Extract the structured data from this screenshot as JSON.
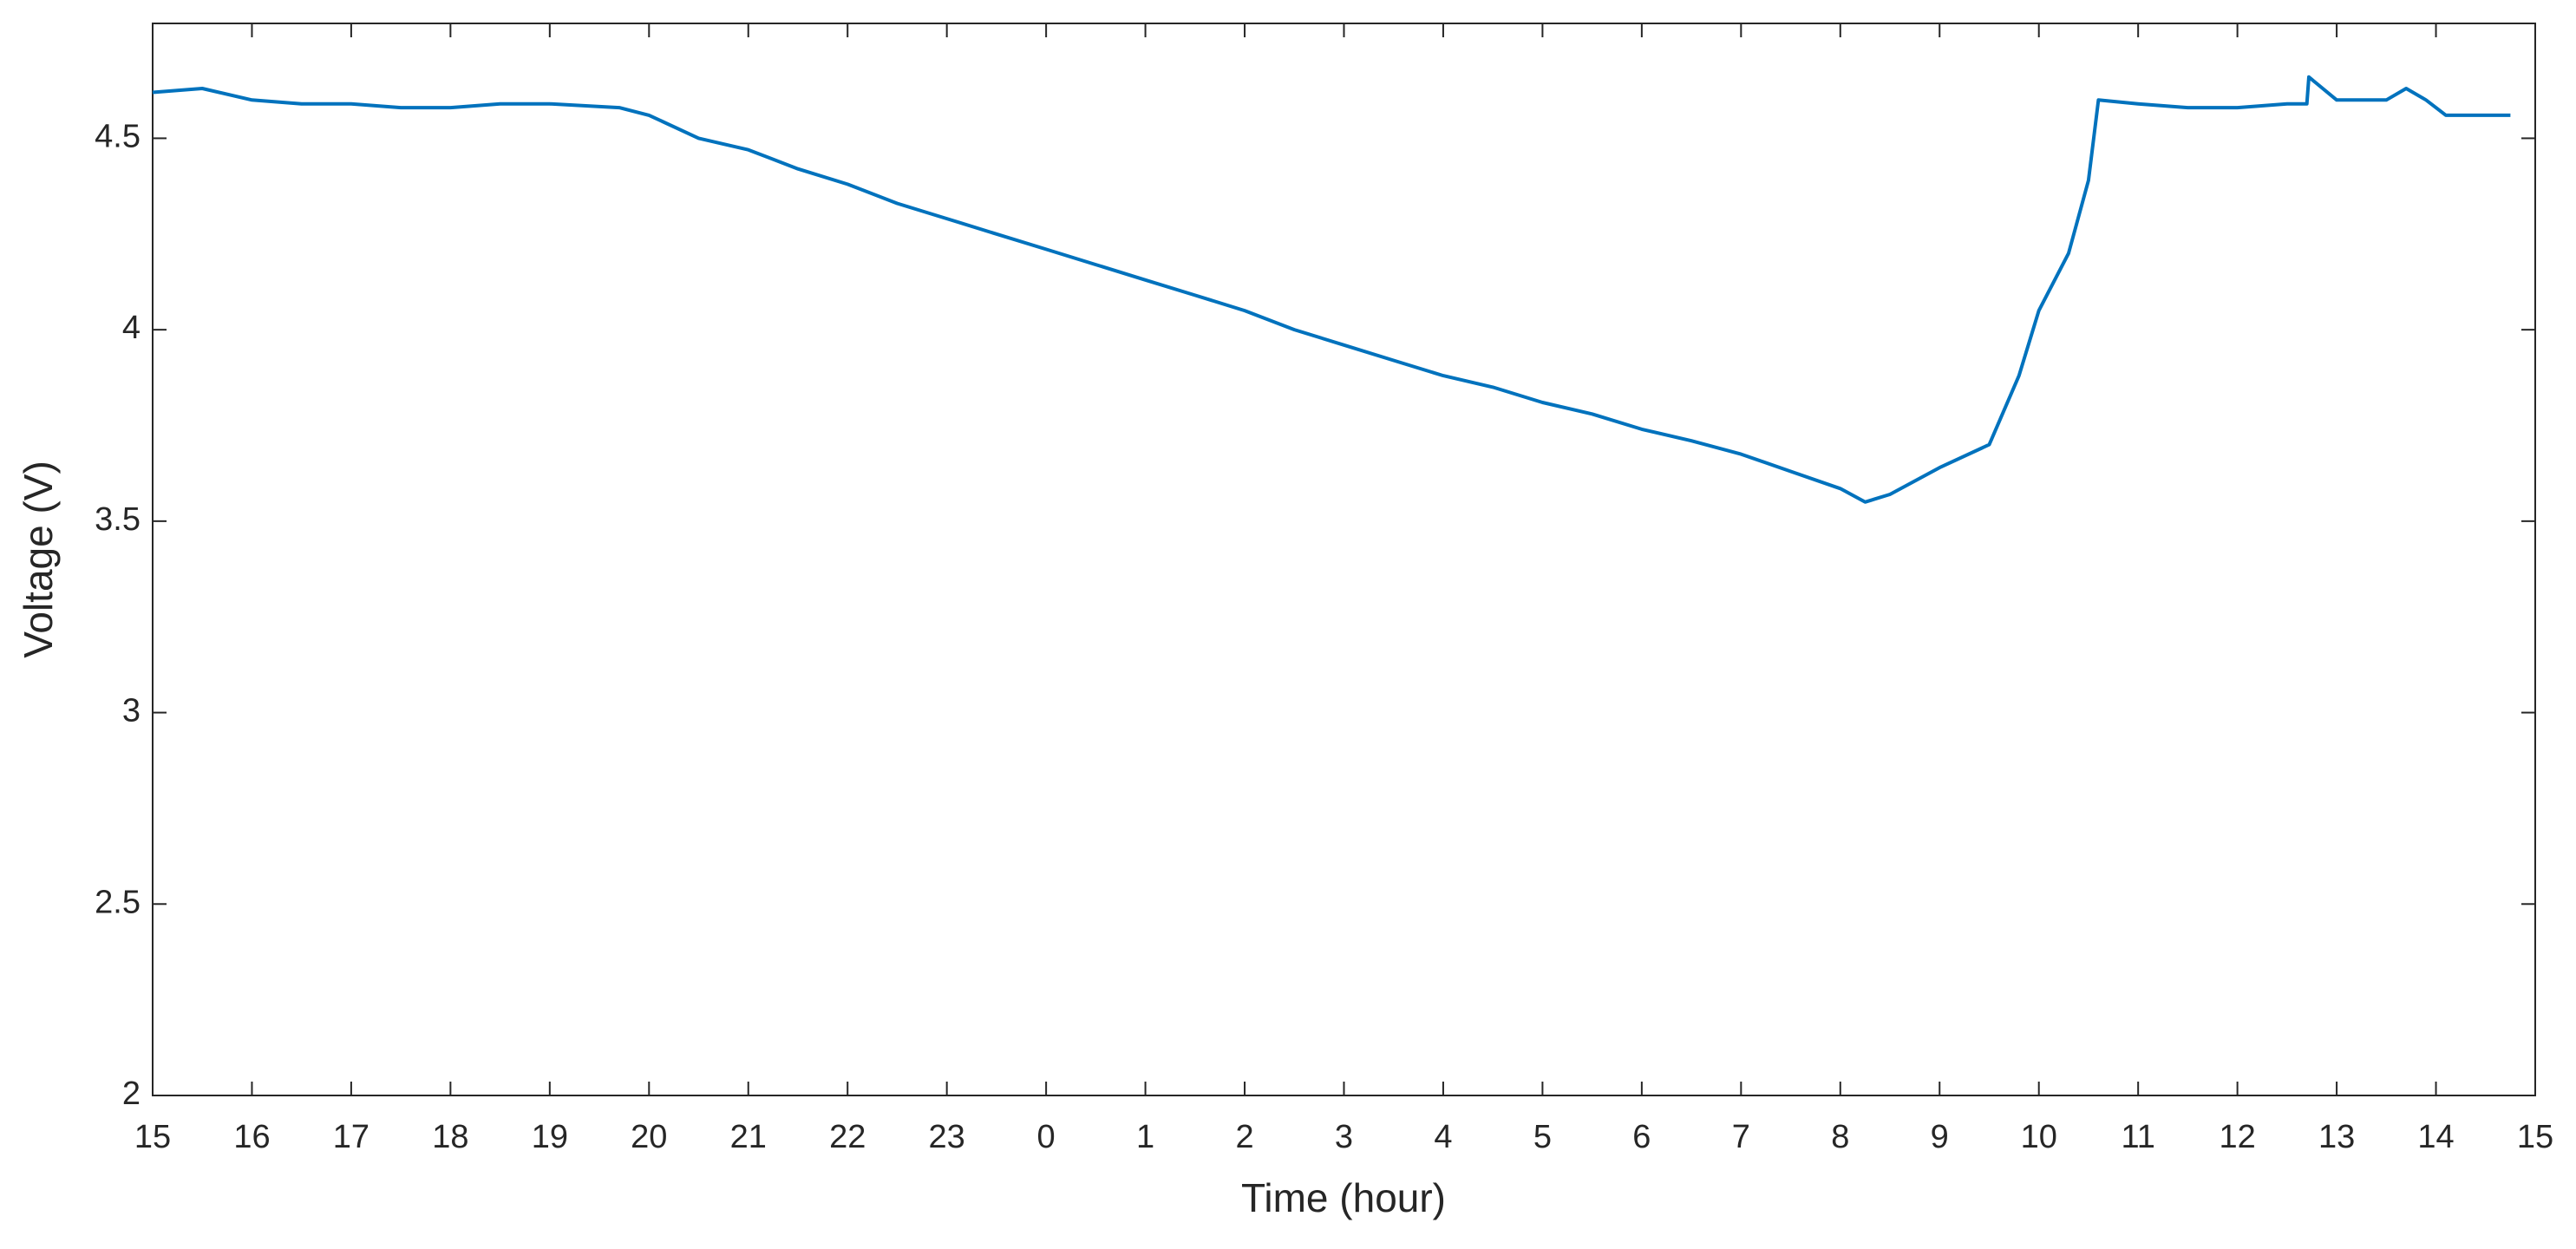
{
  "chart_data": {
    "type": "line",
    "x_label": "Time (hour)",
    "y_label": "Voltage (V)",
    "x": [
      0,
      0.5,
      1,
      1.5,
      2,
      2.5,
      3,
      3.5,
      4,
      4.7,
      5,
      5.5,
      6,
      6.5,
      7,
      7.5,
      8,
      8.5,
      9,
      9.5,
      10,
      10.5,
      11,
      11.5,
      12,
      12.5,
      13,
      13.5,
      14,
      14.5,
      15,
      15.5,
      16,
      16.5,
      17,
      17.25,
      17.5,
      18,
      18.5,
      18.8,
      19,
      19.3,
      19.5,
      19.6,
      20,
      20.5,
      21,
      21.5,
      21.7,
      21.72,
      22,
      22.5,
      22.7,
      22.9,
      23.1,
      23.5,
      23.75
    ],
    "series": [
      {
        "color": "#0072bd",
        "values": [
          4.62,
          4.63,
          4.6,
          4.59,
          4.59,
          4.58,
          4.58,
          4.59,
          4.59,
          4.58,
          4.56,
          4.5,
          4.47,
          4.42,
          4.38,
          4.33,
          4.29,
          4.25,
          4.21,
          4.17,
          4.13,
          4.09,
          4.05,
          4.0,
          3.96,
          3.92,
          3.88,
          3.85,
          3.81,
          3.78,
          3.74,
          3.71,
          3.675,
          3.63,
          3.585,
          3.55,
          3.57,
          3.64,
          3.7,
          3.88,
          4.05,
          4.2,
          4.39,
          4.6,
          4.59,
          4.58,
          4.58,
          4.59,
          4.59,
          4.66,
          4.6,
          4.6,
          4.63,
          4.6,
          4.56,
          4.56,
          4.56
        ]
      }
    ],
    "xlim": [
      0,
      24
    ],
    "xticks": [
      {
        "value": 0,
        "label": "15"
      },
      {
        "value": 1,
        "label": "16"
      },
      {
        "value": 2,
        "label": "17"
      },
      {
        "value": 3,
        "label": "18"
      },
      {
        "value": 4,
        "label": "19"
      },
      {
        "value": 5,
        "label": "20"
      },
      {
        "value": 6,
        "label": "21"
      },
      {
        "value": 7,
        "label": "22"
      },
      {
        "value": 8,
        "label": "23"
      },
      {
        "value": 9,
        "label": "0"
      },
      {
        "value": 10,
        "label": "1"
      },
      {
        "value": 11,
        "label": "2"
      },
      {
        "value": 12,
        "label": "3"
      },
      {
        "value": 13,
        "label": "4"
      },
      {
        "value": 14,
        "label": "5"
      },
      {
        "value": 15,
        "label": "6"
      },
      {
        "value": 16,
        "label": "7"
      },
      {
        "value": 17,
        "label": "8"
      },
      {
        "value": 18,
        "label": "9"
      },
      {
        "value": 19,
        "label": "10"
      },
      {
        "value": 20,
        "label": "11"
      },
      {
        "value": 21,
        "label": "12"
      },
      {
        "value": 22,
        "label": "13"
      },
      {
        "value": 23,
        "label": "14"
      },
      {
        "value": 24,
        "label": "15"
      }
    ],
    "ylim": [
      2,
      4.8
    ],
    "yticks": [
      2,
      2.5,
      3,
      3.5,
      4,
      4.5
    ],
    "grid": false
  }
}
